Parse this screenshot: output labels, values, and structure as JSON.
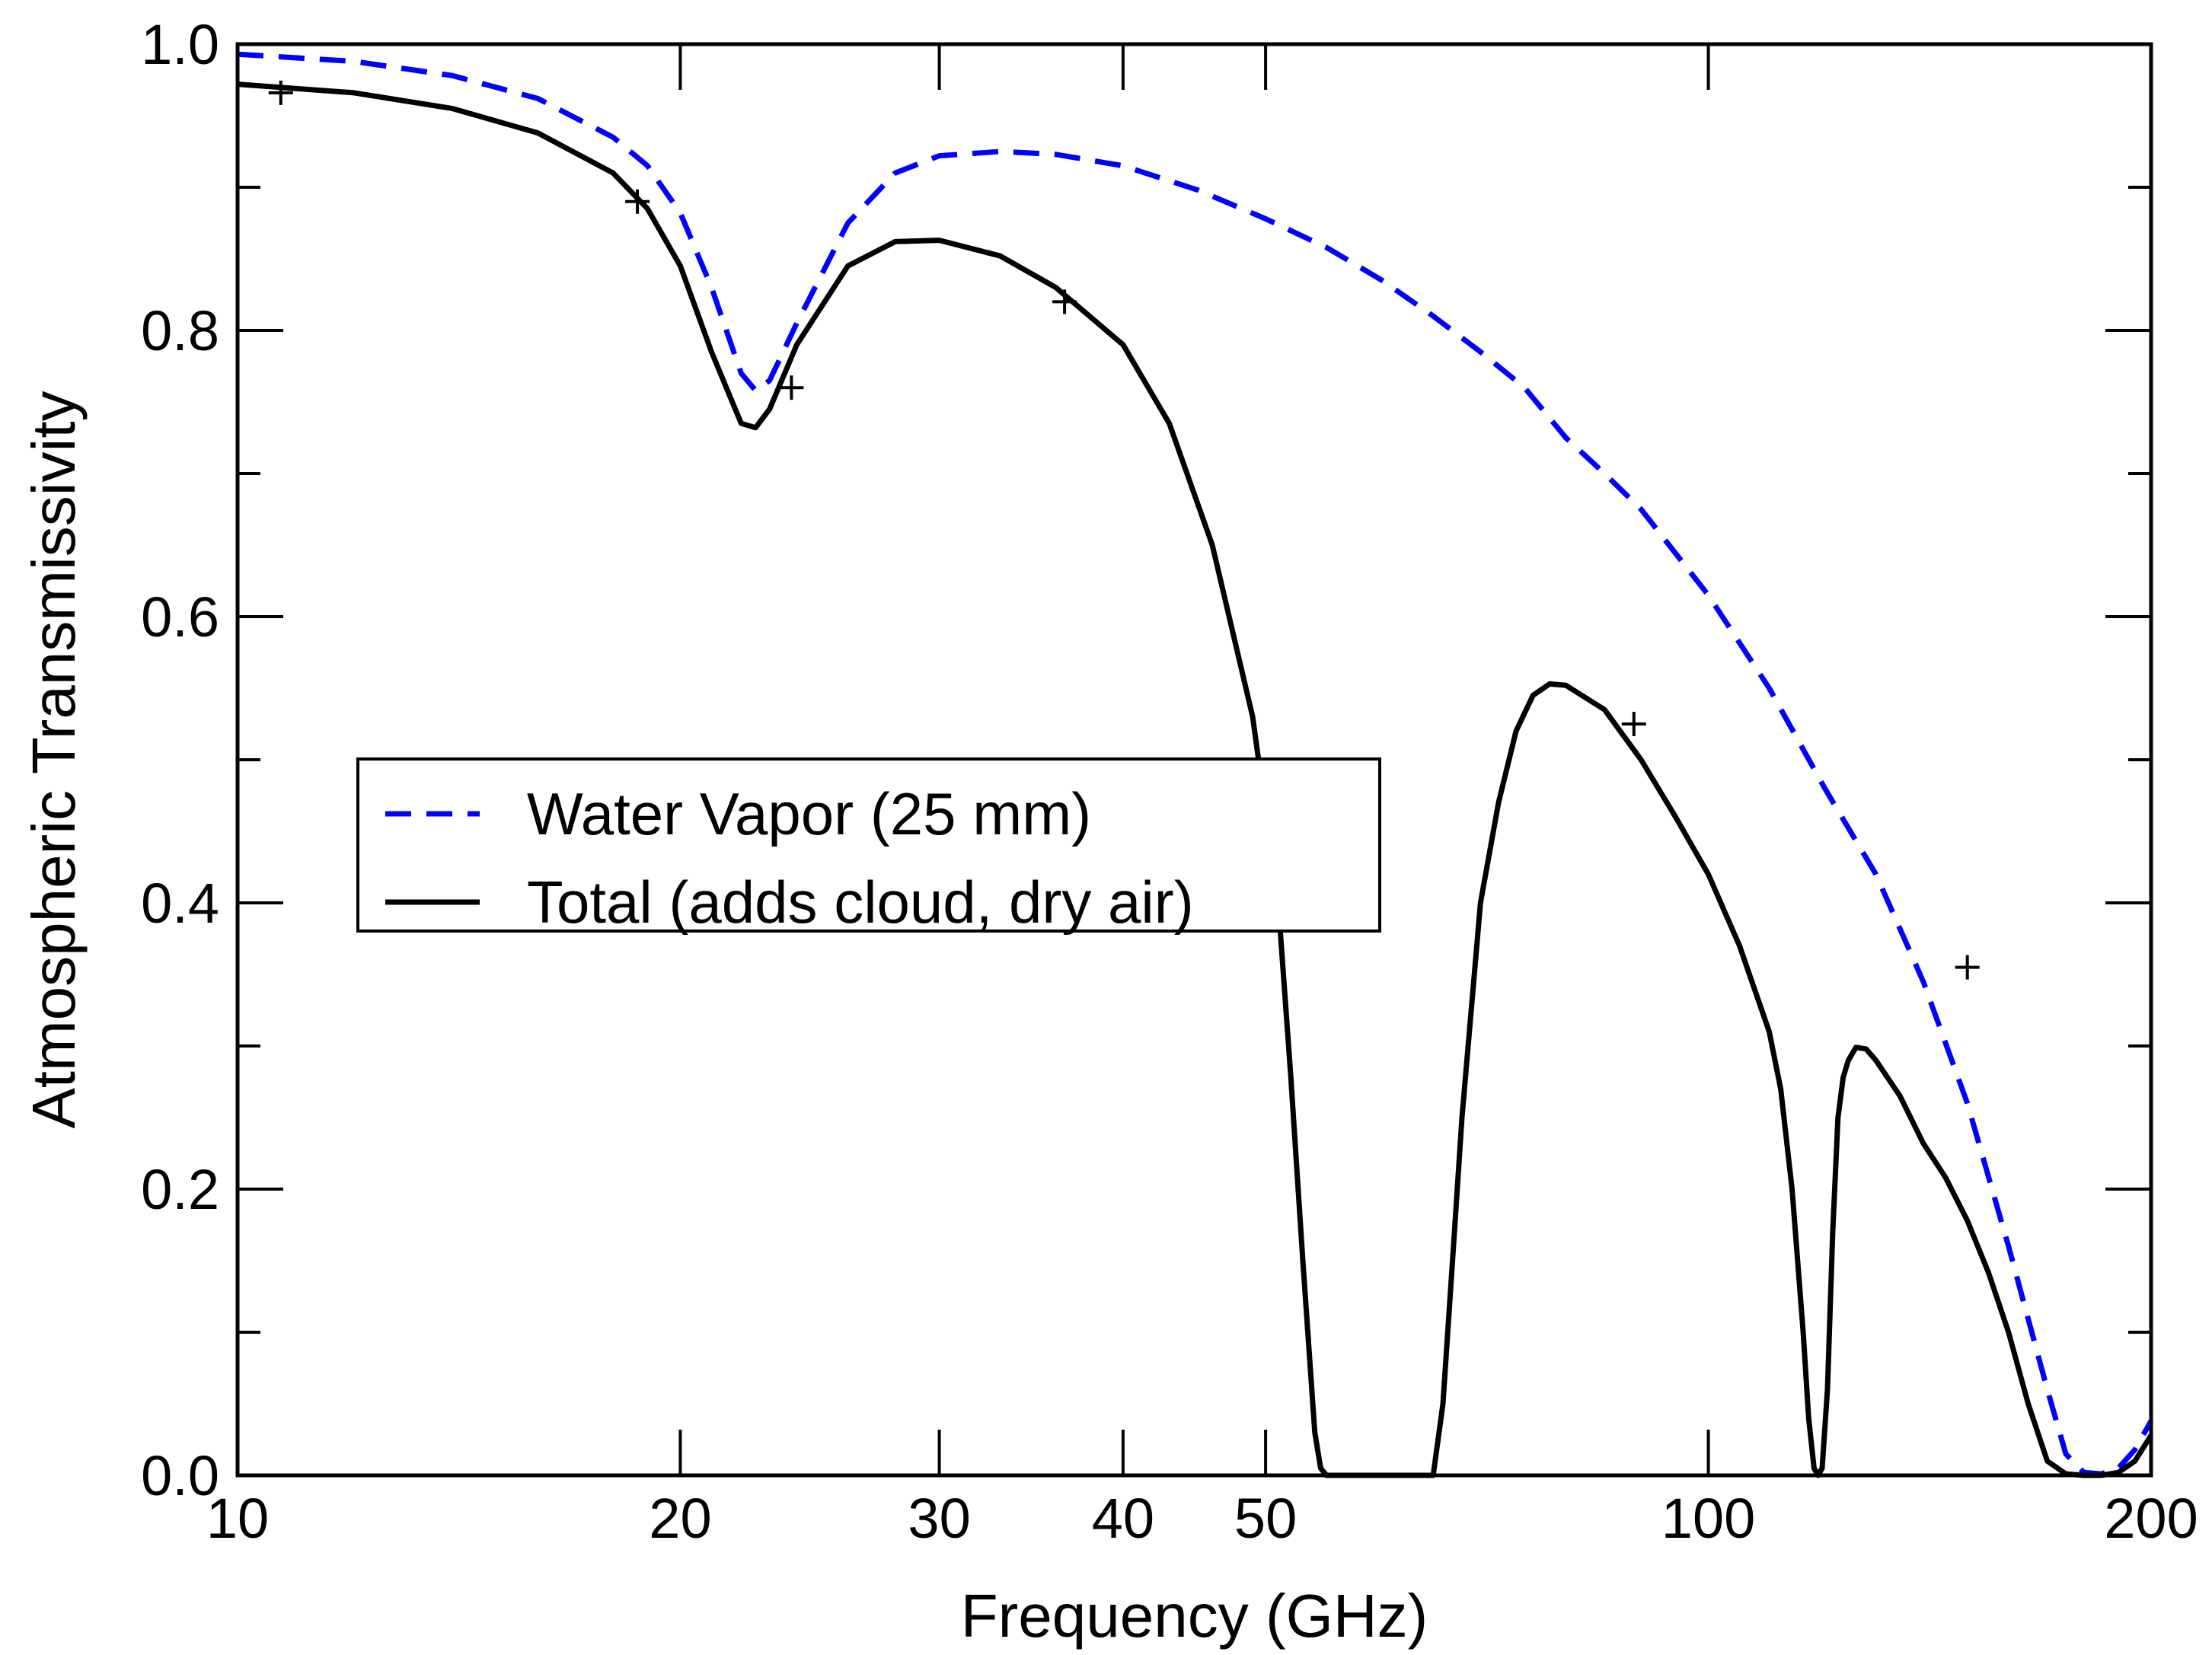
{
  "chart_data": {
    "type": "line",
    "title": "",
    "xlabel": "Frequency (GHz)",
    "ylabel": "Atmospheric Transmissivity",
    "xscale": "log",
    "xlim": [
      10,
      200
    ],
    "ylim": [
      0.0,
      1.0
    ],
    "x_ticks": [
      {
        "value": 10,
        "label": "10"
      },
      {
        "value": 20,
        "label": "20"
      },
      {
        "value": 30,
        "label": "30"
      },
      {
        "value": 40,
        "label": "40"
      },
      {
        "value": 50,
        "label": "50"
      },
      {
        "value": 100,
        "label": "100"
      },
      {
        "value": 200,
        "label": "200"
      }
    ],
    "y_ticks": [
      {
        "value": 0.0,
        "label": "0.0"
      },
      {
        "value": 0.2,
        "label": "0.2"
      },
      {
        "value": 0.4,
        "label": "0.4"
      },
      {
        "value": 0.6,
        "label": "0.6"
      },
      {
        "value": 0.8,
        "label": "0.8"
      },
      {
        "value": 1.0,
        "label": "1.0"
      }
    ],
    "y_minor_ticks": [
      0.1,
      0.3,
      0.5,
      0.7,
      0.9
    ],
    "legend_position": "center-left",
    "series": [
      {
        "name": "Water Vapor (25 mm)",
        "color": "#0000ff",
        "style": "dashed",
        "x": [
          10,
          12,
          14,
          16,
          18,
          19,
          20,
          21,
          22,
          22.5,
          23,
          24,
          26,
          28,
          30,
          33,
          36,
          40,
          45,
          50,
          55,
          60,
          65,
          70,
          75,
          80,
          85,
          90,
          100,
          110,
          120,
          130,
          140,
          150,
          160,
          170,
          175,
          180,
          185,
          190,
          195,
          200
        ],
        "y": [
          0.993,
          0.988,
          0.978,
          0.962,
          0.935,
          0.915,
          0.882,
          0.83,
          0.77,
          0.758,
          0.765,
          0.805,
          0.875,
          0.91,
          0.922,
          0.925,
          0.923,
          0.915,
          0.898,
          0.878,
          0.858,
          0.835,
          0.81,
          0.785,
          0.76,
          0.725,
          0.7,
          0.675,
          0.615,
          0.55,
          0.48,
          0.42,
          0.345,
          0.26,
          0.16,
          0.06,
          0.015,
          0.002,
          0.001,
          0.005,
          0.018,
          0.038
        ]
      },
      {
        "name": "Total (adds cloud, dry air)",
        "color": "#000000",
        "style": "solid",
        "x": [
          10,
          12,
          14,
          16,
          18,
          19,
          20,
          21,
          22,
          22.5,
          23,
          24,
          26,
          28,
          30,
          33,
          36,
          40,
          43,
          46,
          49,
          51,
          52,
          53,
          54,
          54.5,
          55,
          57,
          60,
          63,
          65,
          66,
          67,
          68,
          70,
          72,
          74,
          76,
          78,
          80,
          85,
          90,
          95,
          100,
          105,
          110,
          112,
          114,
          116,
          117,
          118,
          118.75,
          119.5,
          120.5,
          121.5,
          122.5,
          123.5,
          124.5,
          126,
          128,
          130,
          135,
          140,
          145,
          150,
          155,
          160,
          165,
          170,
          175,
          180,
          185,
          190,
          195,
          200
        ],
        "y": [
          0.972,
          0.966,
          0.955,
          0.938,
          0.91,
          0.885,
          0.845,
          0.785,
          0.735,
          0.732,
          0.745,
          0.79,
          0.845,
          0.862,
          0.863,
          0.852,
          0.83,
          0.79,
          0.735,
          0.65,
          0.53,
          0.4,
          0.28,
          0.15,
          0.03,
          0.005,
          0.0,
          0.0,
          0.0,
          0.0,
          0.0,
          0.05,
          0.15,
          0.25,
          0.4,
          0.47,
          0.52,
          0.545,
          0.553,
          0.552,
          0.535,
          0.5,
          0.46,
          0.42,
          0.37,
          0.31,
          0.27,
          0.2,
          0.1,
          0.04,
          0.005,
          0.0,
          0.005,
          0.06,
          0.17,
          0.25,
          0.278,
          0.29,
          0.299,
          0.298,
          0.29,
          0.265,
          0.232,
          0.208,
          0.178,
          0.142,
          0.1,
          0.05,
          0.01,
          0.001,
          0.0,
          0.0,
          0.002,
          0.01,
          0.028
        ]
      }
    ],
    "markers": {
      "symbol": "+",
      "color": "#000000",
      "x": [
        10.7,
        18.7,
        23.8,
        36.5,
        89,
        150
      ],
      "y": [
        0.966,
        0.89,
        0.76,
        0.82,
        0.525,
        0.355
      ]
    }
  }
}
